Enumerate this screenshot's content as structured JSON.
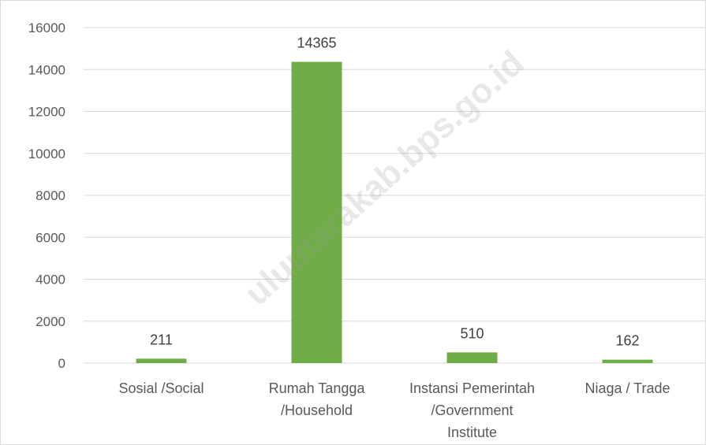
{
  "chart_data": {
    "type": "bar",
    "title": "",
    "xlabel": "",
    "ylabel": "",
    "categories": [
      [
        "Sosial /Social"
      ],
      [
        "Rumah Tangga",
        "/Household"
      ],
      [
        "Instansi Pemerintah",
        "/Government",
        "Institute"
      ],
      [
        "Niaga / Trade"
      ]
    ],
    "values": [
      211,
      14365,
      510,
      162
    ],
    "data_labels": [
      "211",
      "14365",
      "510",
      "162"
    ],
    "ylim": [
      0,
      16000
    ],
    "yticks": [
      0,
      2000,
      4000,
      6000,
      8000,
      10000,
      12000,
      14000,
      16000
    ],
    "grid": true,
    "legend": "none",
    "bar_color": "#70ad47",
    "grid_color": "#d9d9d9"
  },
  "watermark": {
    "text": "uluutarakab.bps.go.id"
  }
}
